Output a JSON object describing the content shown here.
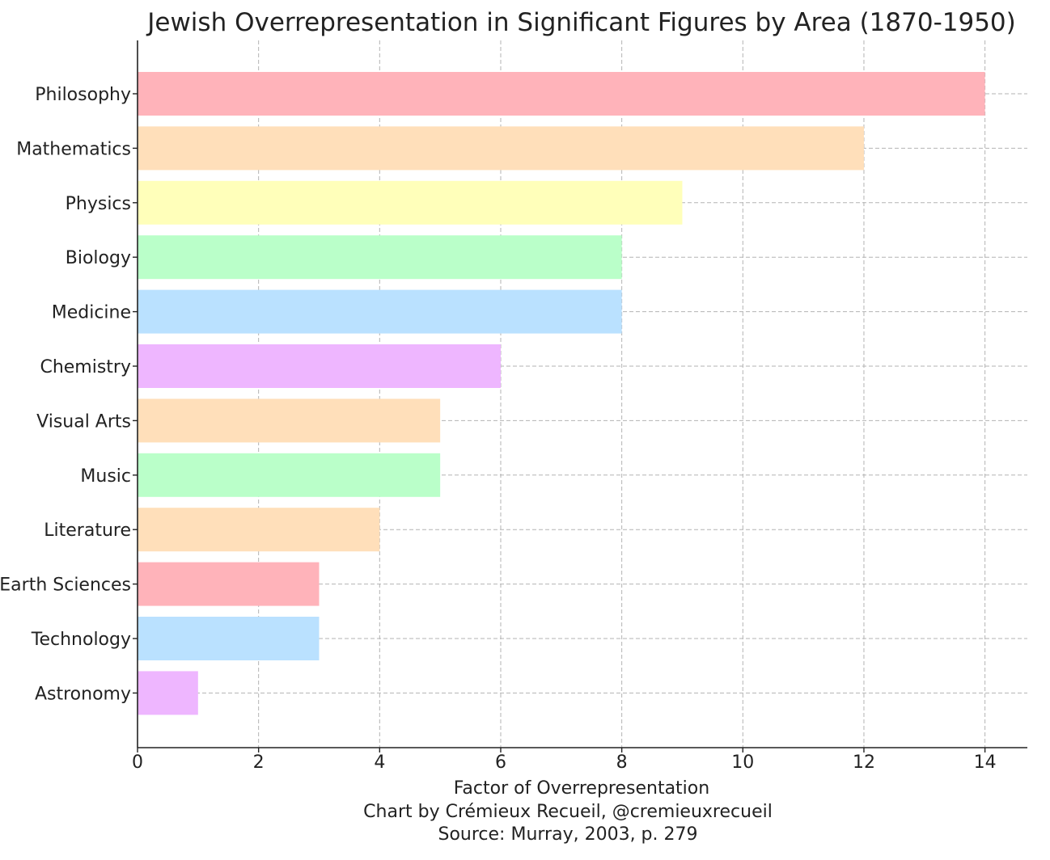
{
  "chart_data": {
    "type": "bar",
    "orientation": "horizontal",
    "title": "Jewish Overrepresentation in Significant Figures by Area (1870-1950)",
    "xlabel": "Factor of Overrepresentation",
    "credit": "Chart by Crémieux Recueil, @cremieuxrecueil",
    "source": "Source: Murray, 2003, p. 279",
    "xlim": [
      0,
      14.7
    ],
    "xticks": [
      0,
      2,
      4,
      6,
      8,
      10,
      12,
      14
    ],
    "grid": true,
    "categories": [
      "Philosophy",
      "Mathematics",
      "Physics",
      "Biology",
      "Medicine",
      "Chemistry",
      "Visual Arts",
      "Music",
      "Literature",
      "Earth Sciences",
      "Technology",
      "Astronomy"
    ],
    "values": [
      14,
      12,
      9,
      8,
      8,
      6,
      5,
      5,
      4,
      3,
      3,
      1
    ],
    "colors": [
      "#ffb3ba",
      "#ffdfba",
      "#ffffba",
      "#baffc9",
      "#bae1ff",
      "#eeb6ff",
      "#ffdfba",
      "#baffc9",
      "#ffdfba",
      "#ffb3ba",
      "#bae1ff",
      "#eeb6ff"
    ]
  }
}
